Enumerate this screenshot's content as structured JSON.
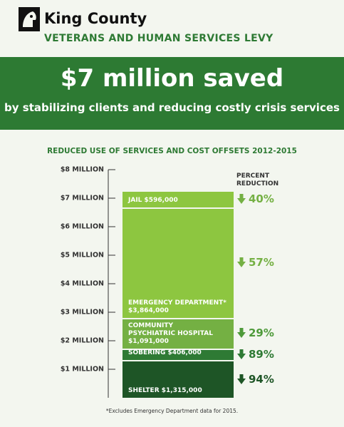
{
  "header": {
    "logo": "King County",
    "program": "VETERANS AND HUMAN SERVICES LEVY"
  },
  "banner": {
    "headline": "$7 million saved",
    "subhead": "by stabilizing clients and reducing costly crisis services"
  },
  "chart_data": {
    "type": "stacked_bar",
    "title": "REDUCED USE OF SERVICES AND COST OFFSETS 2012-2015",
    "ylim": [
      0,
      8000000
    ],
    "yticks": [
      {
        "value": 1000000,
        "label": "$1 MILLION"
      },
      {
        "value": 2000000,
        "label": "$2 MILLION"
      },
      {
        "value": 3000000,
        "label": "$3 MILLION"
      },
      {
        "value": 4000000,
        "label": "$4 MILLION"
      },
      {
        "value": 5000000,
        "label": "$5 MILLION"
      },
      {
        "value": 6000000,
        "label": "$6 MILLION"
      },
      {
        "value": 7000000,
        "label": "$7 MILLION"
      },
      {
        "value": 8000000,
        "label": "$8 MILLION"
      }
    ],
    "series": [
      {
        "name": "SHELTER",
        "color": "#1e5526",
        "values": [
          1315000
        ],
        "value_labels": [
          "$1,315,000"
        ]
      },
      {
        "name": "SOBERING",
        "color": "#2e7a34",
        "values": [
          406000
        ],
        "value_labels": [
          "$406,000"
        ]
      },
      {
        "name": "COMMUNITY PSYCHIATRIC HOSPITAL",
        "color": "#74b043",
        "values": [
          1091000
        ],
        "value_labels": [
          "$1,091,000"
        ]
      },
      {
        "name": "EMERGENCY DEPARTMENT*",
        "color": "#8dc640",
        "values": [
          3864000
        ],
        "value_labels": [
          "$3,864,000"
        ]
      },
      {
        "name": "JAIL",
        "color": "#8dc640",
        "values": [
          596000
        ],
        "value_labels": [
          "$596,000"
        ]
      }
    ],
    "percent_reduction": {
      "title": "PERCENT REDUCTION",
      "values": [
        94,
        89,
        29,
        57,
        40
      ],
      "value_labels": [
        "94%",
        "89%",
        "29%",
        "57%",
        "40%"
      ],
      "colors": [
        "#1e5526",
        "#2e7a34",
        "#4e9a3a",
        "#74b043",
        "#74b043"
      ]
    }
  },
  "footnote": "*Excludes Emergency Department data for 2015."
}
